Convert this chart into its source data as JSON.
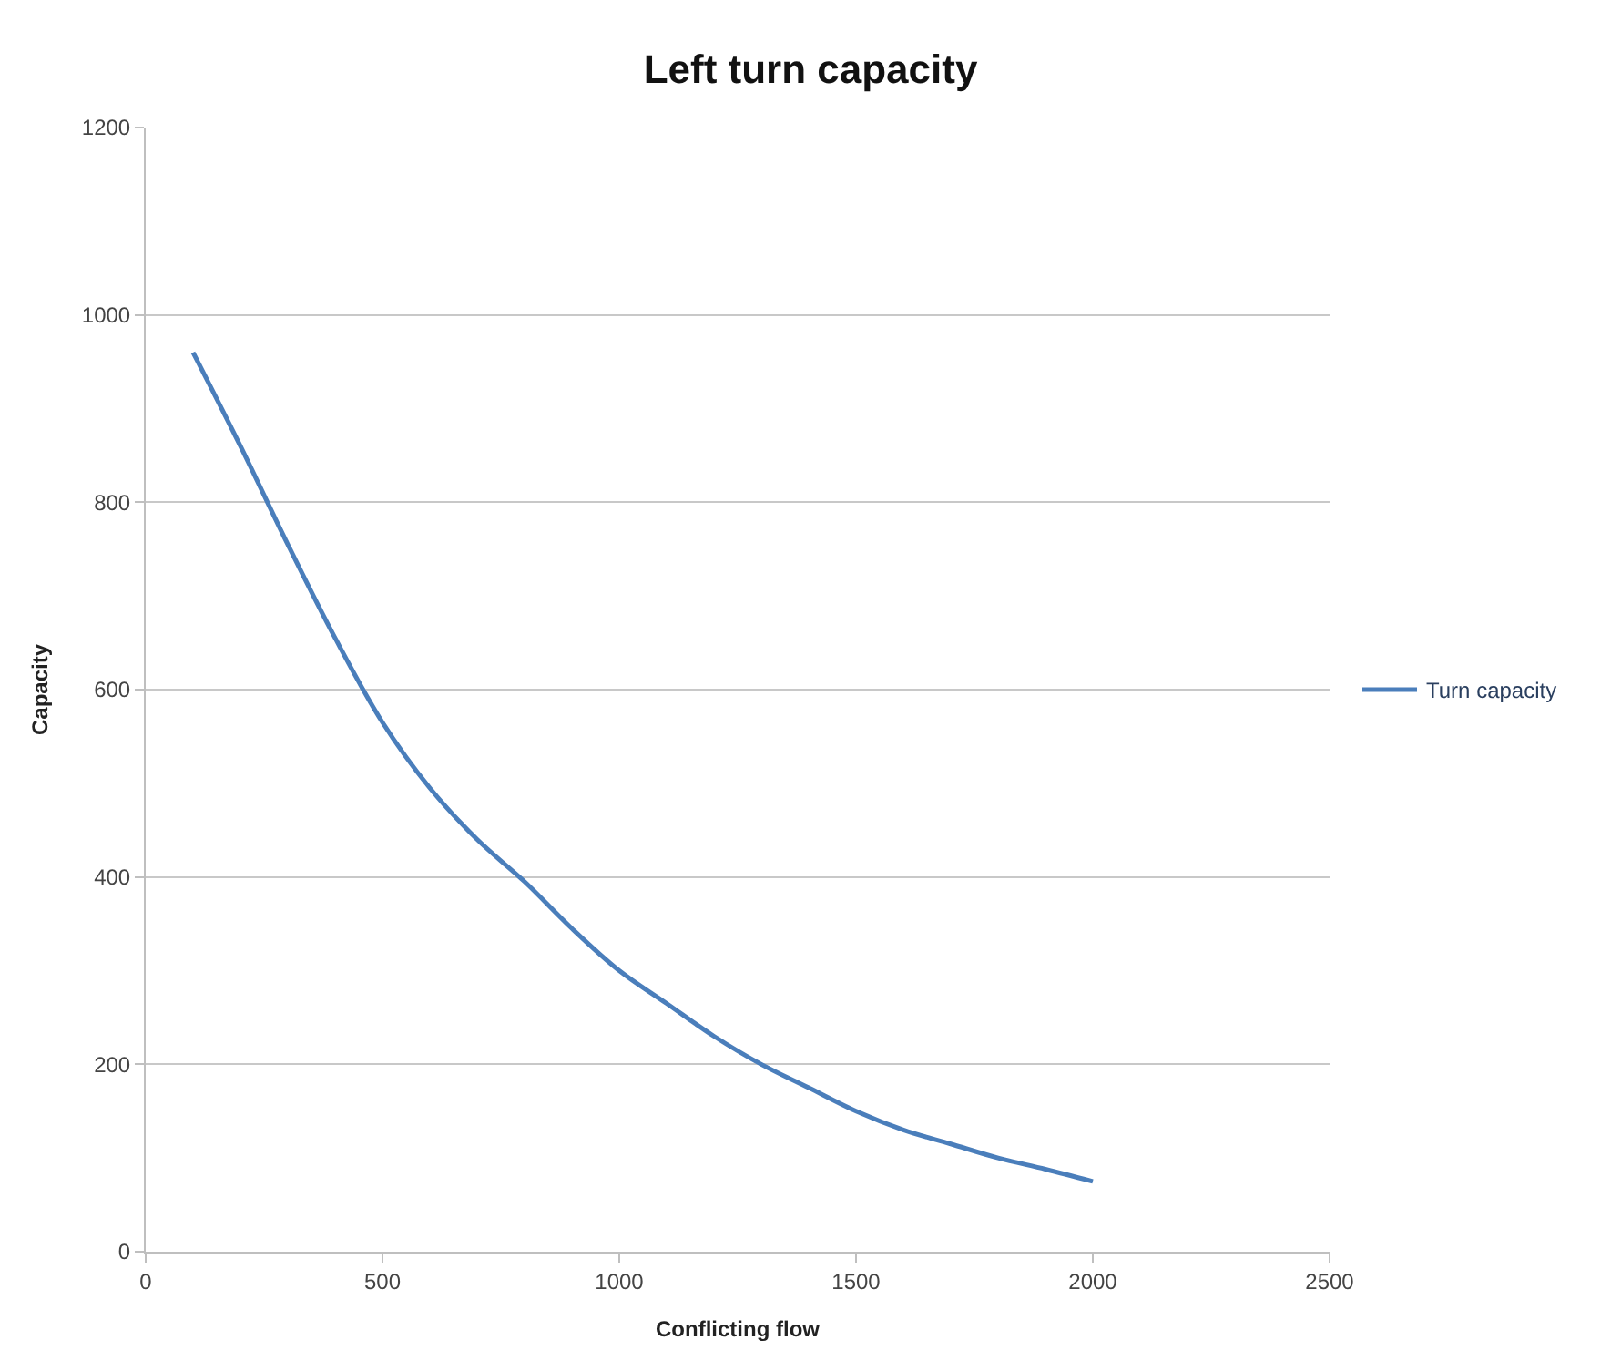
{
  "chart_data": {
    "type": "line",
    "title": "Left turn capacity",
    "xlabel": "Conflicting flow",
    "ylabel": "Capacity",
    "x": [
      100,
      200,
      300,
      400,
      500,
      600,
      700,
      800,
      900,
      1000,
      1100,
      1200,
      1300,
      1400,
      1500,
      1600,
      1700,
      1800,
      1900,
      2000
    ],
    "series": [
      {
        "name": "Turn capacity",
        "color": "#4a7ebb",
        "values": [
          960,
          860,
          755,
          655,
          565,
          495,
          440,
          395,
          345,
          300,
          265,
          230,
          200,
          175,
          150,
          130,
          115,
          100,
          88,
          75
        ]
      }
    ],
    "xlim": [
      0,
      2500
    ],
    "xticks": [
      0,
      500,
      1000,
      1500,
      2000,
      2500
    ],
    "ylim": [
      0,
      1200
    ],
    "yticks": [
      0,
      200,
      400,
      600,
      800,
      1000,
      1200
    ],
    "grid": "y",
    "legend": "right",
    "marker": "none",
    "line_style": "solid"
  }
}
